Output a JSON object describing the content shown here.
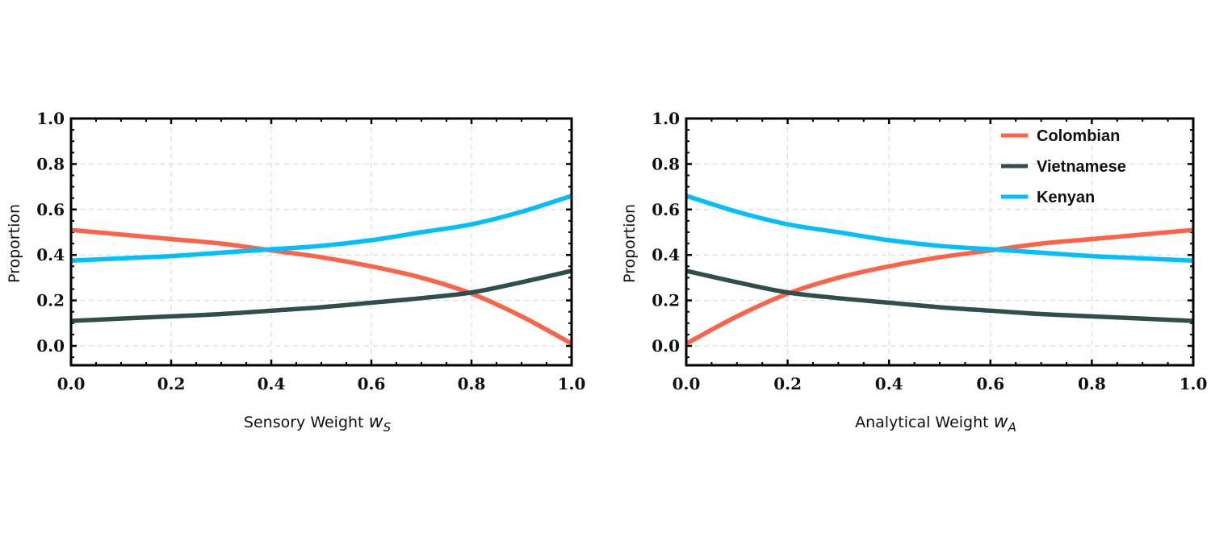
{
  "chart_data": [
    {
      "type": "line",
      "title": "",
      "xlabel": "Sensory Weight",
      "xlabel_symbol": "w",
      "xlabel_sub": "S",
      "ylabel": "Proportion",
      "xlim": [
        0,
        1
      ],
      "ylim": [
        -0.085,
        1.0
      ],
      "xticks": [
        "0.0",
        "0.2",
        "0.4",
        "0.6",
        "0.8",
        "1.0"
      ],
      "yticks": [
        "0.0",
        "0.2",
        "0.4",
        "0.6",
        "0.8",
        "1.0"
      ],
      "grid": true,
      "legend": null,
      "x": [
        0,
        0.1,
        0.2,
        0.3,
        0.4,
        0.5,
        0.6,
        0.7,
        0.8,
        0.9,
        1.0
      ],
      "series": [
        {
          "name": "Colombian",
          "color": "#FF6347",
          "values": [
            0.51,
            0.49,
            0.47,
            0.45,
            0.42,
            0.39,
            0.35,
            0.3,
            0.23,
            0.13,
            0.01
          ]
        },
        {
          "name": "Vietnamese",
          "color": "#2F4F4F",
          "values": [
            0.11,
            0.12,
            0.13,
            0.14,
            0.155,
            0.17,
            0.19,
            0.21,
            0.235,
            0.28,
            0.33
          ]
        },
        {
          "name": "Kenyan",
          "color": "#00BFFF",
          "values": [
            0.375,
            0.385,
            0.395,
            0.41,
            0.425,
            0.44,
            0.465,
            0.5,
            0.535,
            0.59,
            0.66
          ]
        }
      ]
    },
    {
      "type": "line",
      "title": "",
      "xlabel": "Analytical Weight",
      "xlabel_symbol": "w",
      "xlabel_sub": "A",
      "ylabel": "Proportion",
      "xlim": [
        0,
        1
      ],
      "ylim": [
        -0.085,
        1.0
      ],
      "xticks": [
        "0.0",
        "0.2",
        "0.4",
        "0.6",
        "0.8",
        "1.0"
      ],
      "yticks": [
        "0.0",
        "0.2",
        "0.4",
        "0.6",
        "0.8",
        "1.0"
      ],
      "grid": true,
      "legend": "top-right",
      "x": [
        0,
        0.1,
        0.2,
        0.3,
        0.4,
        0.5,
        0.6,
        0.7,
        0.8,
        0.9,
        1.0
      ],
      "series": [
        {
          "name": "Colombian",
          "color": "#FF6347",
          "values": [
            0.01,
            0.13,
            0.23,
            0.3,
            0.35,
            0.39,
            0.42,
            0.45,
            0.47,
            0.49,
            0.51
          ]
        },
        {
          "name": "Vietnamese",
          "color": "#2F4F4F",
          "values": [
            0.33,
            0.28,
            0.235,
            0.21,
            0.19,
            0.17,
            0.155,
            0.14,
            0.13,
            0.12,
            0.11
          ]
        },
        {
          "name": "Kenyan",
          "color": "#00BFFF",
          "values": [
            0.66,
            0.59,
            0.535,
            0.5,
            0.465,
            0.44,
            0.425,
            0.41,
            0.395,
            0.385,
            0.375
          ]
        }
      ]
    }
  ]
}
